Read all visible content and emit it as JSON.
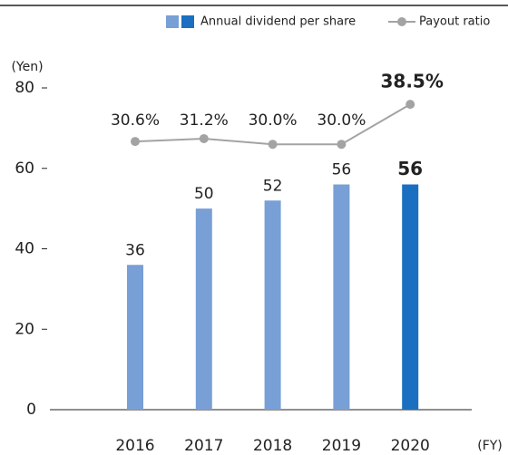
{
  "chart_data": {
    "type": "bar",
    "categories": [
      "2016",
      "2017",
      "2018",
      "2019",
      "2020"
    ],
    "series": [
      {
        "name": "Annual dividend per share",
        "type": "bar",
        "color": "#789fd6",
        "highlight_color": "#1a6fc0",
        "values": [
          36,
          50,
          52,
          56,
          56
        ]
      },
      {
        "name": "Payout ratio",
        "type": "line",
        "axis": "y2",
        "color": "#a3a3a3",
        "values": [
          30.6,
          31.2,
          30.0,
          30.0,
          38.5
        ],
        "value_labels": [
          "30.6%",
          "31.2%",
          "30.0%",
          "30.0%",
          "38.5%"
        ]
      }
    ],
    "highlight": "2020",
    "y_label": "(Yen)",
    "x_label": "(FY)",
    "ylim": [
      0,
      80
    ],
    "yticks": [
      0,
      20,
      40,
      60,
      80
    ],
    "y2lim": [
      -26.5,
      42
    ],
    "grid": false,
    "legend": "top-right"
  }
}
